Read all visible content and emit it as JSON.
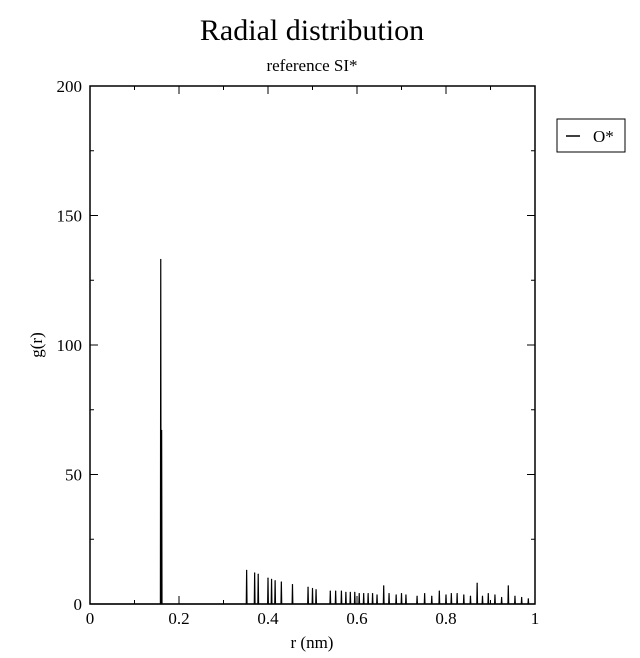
{
  "chart_data": {
    "type": "line",
    "title": "Radial distribution",
    "subtitle": "reference SI*",
    "xlabel": "r (nm)",
    "ylabel": "g(r)",
    "xlim": [
      0,
      1
    ],
    "ylim": [
      0,
      200
    ],
    "x_ticks": [
      0,
      0.2,
      0.4,
      0.6,
      0.8,
      1
    ],
    "x_tick_labels": [
      "0",
      "0.2",
      "0.4",
      "0.6",
      "0.8",
      "1"
    ],
    "y_ticks": [
      0,
      50,
      100,
      150,
      200
    ],
    "y_tick_labels": [
      "0",
      "50",
      "100",
      "150",
      "200"
    ],
    "grid": false,
    "legend_position": "right",
    "series": [
      {
        "name": "O*",
        "color": "#000000",
        "spikes": [
          [
            0.159,
            133
          ],
          [
            0.161,
            67
          ],
          [
            0.352,
            13
          ],
          [
            0.37,
            12
          ],
          [
            0.378,
            11.5
          ],
          [
            0.4,
            10
          ],
          [
            0.408,
            9.5
          ],
          [
            0.416,
            9
          ],
          [
            0.43,
            8.5
          ],
          [
            0.455,
            7.5
          ],
          [
            0.49,
            6.5
          ],
          [
            0.5,
            6
          ],
          [
            0.508,
            5.5
          ],
          [
            0.54,
            5
          ],
          [
            0.552,
            5
          ],
          [
            0.565,
            5
          ],
          [
            0.575,
            4.5
          ],
          [
            0.585,
            4.5
          ],
          [
            0.595,
            4.5
          ],
          [
            0.605,
            4
          ],
          [
            0.615,
            4
          ],
          [
            0.625,
            4
          ],
          [
            0.635,
            4
          ],
          [
            0.645,
            3.5
          ],
          [
            0.66,
            7
          ],
          [
            0.672,
            4
          ],
          [
            0.688,
            3.5
          ],
          [
            0.7,
            4
          ],
          [
            0.71,
            3.5
          ],
          [
            0.735,
            3
          ],
          [
            0.752,
            4
          ],
          [
            0.768,
            3
          ],
          [
            0.785,
            5
          ],
          [
            0.8,
            3.5
          ],
          [
            0.812,
            4
          ],
          [
            0.825,
            4
          ],
          [
            0.84,
            3.5
          ],
          [
            0.855,
            3
          ],
          [
            0.87,
            8
          ],
          [
            0.882,
            3
          ],
          [
            0.895,
            4
          ],
          [
            0.91,
            3.5
          ],
          [
            0.925,
            2.5
          ],
          [
            0.94,
            7
          ],
          [
            0.955,
            3
          ],
          [
            0.97,
            2.5
          ],
          [
            0.985,
            2
          ]
        ]
      }
    ]
  }
}
